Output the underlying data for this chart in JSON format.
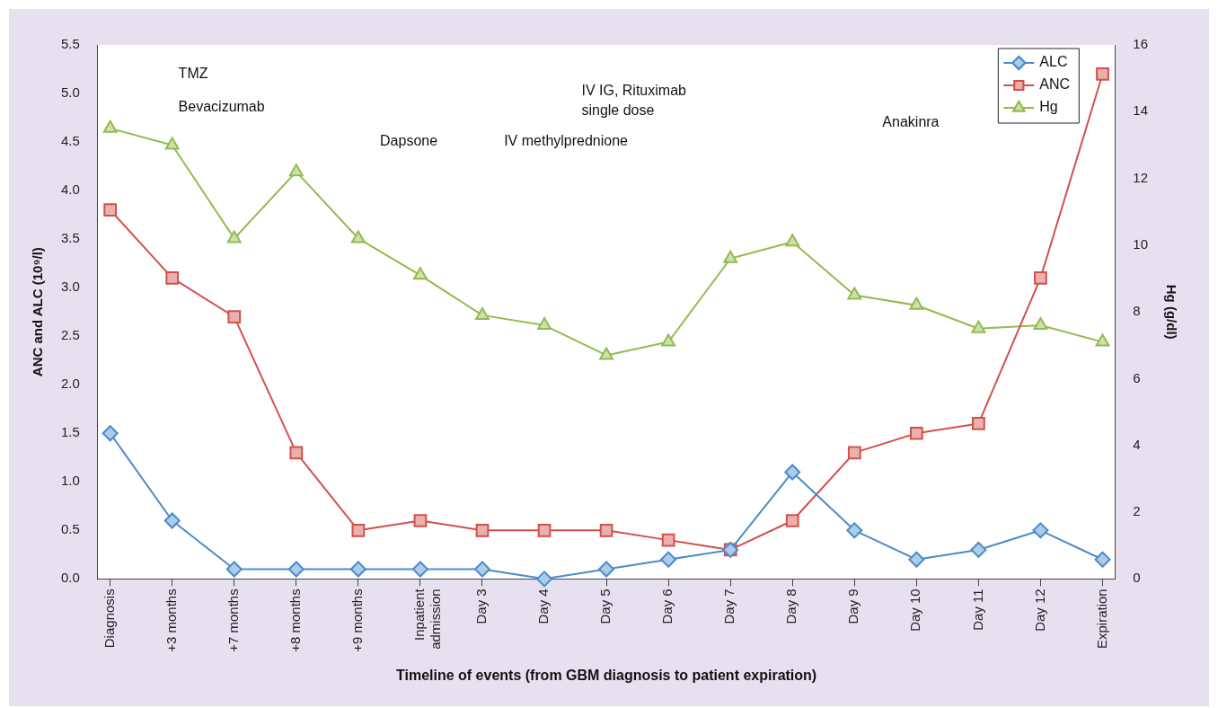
{
  "chart_data": {
    "type": "line",
    "xlabel": "Timeline of events (from GBM diagnosis to patient expiration)",
    "ylabel": "ANC and ALC (10⁹/l)",
    "y2label": "Hg (g/dl)",
    "categories": [
      "Diagnosis",
      "+3 months",
      "+7 months",
      "+8 months",
      "+9 months",
      "Inpatient admission",
      "Day 3",
      "Day 4",
      "Day 5",
      "Day 6",
      "Day 7",
      "Day 8",
      "Day 9",
      "Day 10",
      "Day 11",
      "Day 12",
      "Expiration"
    ],
    "series": [
      {
        "name": "ALC",
        "color": "#4a8ccb",
        "marker": "diamond",
        "values": [
          1.5,
          0.6,
          0.1,
          0.1,
          0.1,
          0.1,
          0.1,
          0.0,
          0.1,
          0.2,
          0.3,
          1.1,
          0.5,
          0.2,
          0.3,
          0.5,
          0.2
        ]
      },
      {
        "name": "ANC",
        "color": "#d2504c",
        "marker": "square",
        "values": [
          3.8,
          3.1,
          2.7,
          1.3,
          0.5,
          0.6,
          0.5,
          0.5,
          0.5,
          0.4,
          0.3,
          0.6,
          1.3,
          1.5,
          1.6,
          3.1,
          5.2
        ]
      },
      {
        "name": "Hg",
        "color": "#93bb4f",
        "marker": "triangle",
        "axis": "y2",
        "values": [
          13.5,
          13.0,
          10.2,
          12.2,
          10.2,
          9.1,
          7.9,
          7.6,
          6.7,
          7.1,
          9.6,
          10.1,
          8.5,
          8.2,
          7.5,
          7.6,
          7.1
        ]
      }
    ],
    "ylim": [
      0,
      5.5
    ],
    "yticks": [
      {
        "value": 0,
        "label": "0.0"
      },
      0.5,
      {
        "value": 1,
        "label": "1.0"
      },
      1.5,
      {
        "value": 2,
        "label": "2.0"
      },
      2.5,
      {
        "value": 3,
        "label": "3.0"
      },
      3.5,
      {
        "value": 4,
        "label": "4.0"
      },
      4.5,
      {
        "value": 5,
        "label": "5.0"
      },
      5.5
    ],
    "y2lim": [
      0,
      16
    ],
    "y2ticks": [
      0,
      2,
      4,
      6,
      8,
      10,
      12,
      14,
      16
    ],
    "grid": false,
    "legend": "top right",
    "annotations": [
      "TMZ",
      "Bevacizumab",
      "Dapsone",
      "IV methylprednione",
      "IV IG, Rituximab single dose",
      "Anakinra"
    ]
  }
}
